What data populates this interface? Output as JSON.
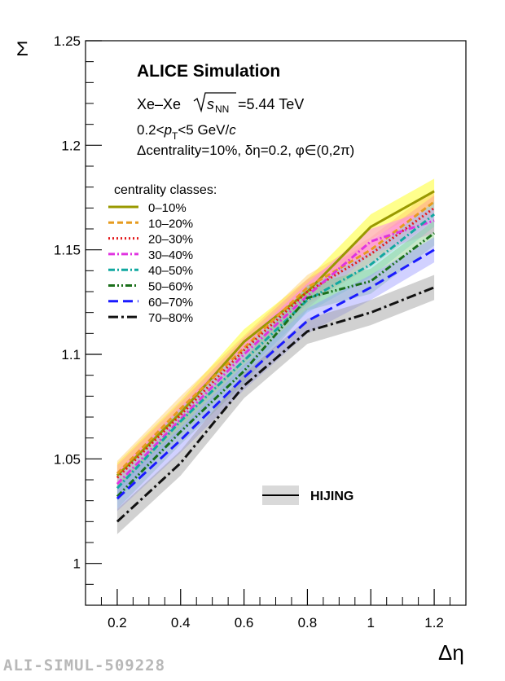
{
  "chart_data": {
    "type": "line",
    "title": "ALICE Simulation",
    "system": "Xe–Xe",
    "energy_value": "=5.44 TeV",
    "cut_pt": "0.2<p_T<5 GeV/c",
    "cut_misc": "Δcentrality=10%, δη=0.2, φ∈(0,2π)",
    "xlabel": "Δη",
    "ylabel": "Σ",
    "xlim": [
      0.1,
      1.3
    ],
    "ylim": [
      0.98,
      1.25
    ],
    "xticks": [
      "0.2",
      "0.4",
      "0.6",
      "0.8",
      "1",
      "1.2"
    ],
    "yticks": [
      "1",
      "1.05",
      "1.1",
      "1.15",
      "1.2",
      "1.25"
    ],
    "legend_title": "centrality classes:",
    "legend_position": "upper-left",
    "x": [
      0.2,
      0.4,
      0.6,
      0.8,
      1.0,
      1.2
    ],
    "series": [
      {
        "name": "0–10%",
        "color": "#999900",
        "dash": "solid",
        "values": [
          1.042,
          1.072,
          1.106,
          1.13,
          1.161,
          1.178
        ],
        "band": 0.006,
        "band_color": "#ffff00"
      },
      {
        "name": "10–20%",
        "color": "#e69b1f",
        "dash": "dashed",
        "values": [
          1.043,
          1.074,
          1.103,
          1.132,
          1.15,
          1.173
        ],
        "band": 0.006,
        "band_color": "#ffcc66"
      },
      {
        "name": "20–30%",
        "color": "#e41a1c",
        "dash": "dotted",
        "values": [
          1.041,
          1.071,
          1.102,
          1.13,
          1.148,
          1.17
        ],
        "band": 0.006,
        "band_color": "#ff9999"
      },
      {
        "name": "30–40%",
        "color": "#e033e0",
        "dash": "dashdot",
        "values": [
          1.038,
          1.069,
          1.1,
          1.128,
          1.154,
          1.164
        ],
        "band": 0.006,
        "band_color": "#ff77ff"
      },
      {
        "name": "40–50%",
        "color": "#11a8a0",
        "dash": "dashdot",
        "values": [
          1.036,
          1.068,
          1.097,
          1.126,
          1.143,
          1.167
        ],
        "band": 0.006,
        "band_color": "#77dddd"
      },
      {
        "name": "50–60%",
        "color": "#1a6f1a",
        "dash": "dashdotdot",
        "values": [
          1.032,
          1.063,
          1.092,
          1.127,
          1.135,
          1.158
        ],
        "band": 0.006,
        "band_color": "#88cc88"
      },
      {
        "name": "60–70%",
        "color": "#1a1aff",
        "dash": "longdash",
        "values": [
          1.031,
          1.059,
          1.089,
          1.116,
          1.132,
          1.15
        ],
        "band": 0.006,
        "band_color": "#9999ff"
      },
      {
        "name": "70–80%",
        "color": "#111111",
        "dash": "longdashdot",
        "values": [
          1.02,
          1.048,
          1.085,
          1.111,
          1.12,
          1.132
        ],
        "band": 0.006,
        "band_color": "#999999"
      }
    ],
    "hijing_label": "HIJING"
  },
  "watermark": "ALI-SIMUL-509228"
}
